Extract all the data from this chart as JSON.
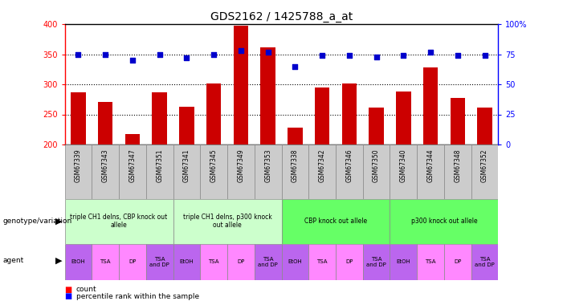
{
  "title": "GDS2162 / 1425788_a_at",
  "samples": [
    "GSM67339",
    "GSM67343",
    "GSM67347",
    "GSM67351",
    "GSM67341",
    "GSM67345",
    "GSM67349",
    "GSM67353",
    "GSM67338",
    "GSM67342",
    "GSM67346",
    "GSM67350",
    "GSM67340",
    "GSM67344",
    "GSM67348",
    "GSM67352"
  ],
  "counts": [
    287,
    271,
    218,
    287,
    263,
    302,
    397,
    361,
    228,
    295,
    302,
    261,
    288,
    328,
    277,
    261
  ],
  "percentiles": [
    75,
    75,
    70,
    75,
    72,
    75,
    78,
    77,
    65,
    74,
    74,
    73,
    74,
    77,
    74,
    74
  ],
  "ylim_left": [
    200,
    400
  ],
  "ylim_right": [
    0,
    100
  ],
  "yticks_left": [
    200,
    250,
    300,
    350,
    400
  ],
  "yticks_right": [
    0,
    25,
    50,
    75,
    100
  ],
  "bar_color": "#cc0000",
  "dot_color": "#0000cc",
  "genotype_groups": [
    {
      "label": "triple CH1 delns, CBP knock out\nallele",
      "start": 0,
      "end": 4,
      "color": "#ccffcc"
    },
    {
      "label": "triple CH1 delns, p300 knock\nout allele",
      "start": 4,
      "end": 8,
      "color": "#ccffcc"
    },
    {
      "label": "CBP knock out allele",
      "start": 8,
      "end": 12,
      "color": "#66ff66"
    },
    {
      "label": "p300 knock out allele",
      "start": 12,
      "end": 16,
      "color": "#66ff66"
    }
  ],
  "agent_color_map": [
    "#bb66ee",
    "#ff88ff",
    "#ff88ff",
    "#bb66ee",
    "#bb66ee",
    "#ff88ff",
    "#ff88ff",
    "#bb66ee",
    "#bb66ee",
    "#ff88ff",
    "#ff88ff",
    "#bb66ee",
    "#bb66ee",
    "#ff88ff",
    "#ff88ff",
    "#bb66ee"
  ],
  "agent_labels": [
    "EtOH",
    "TSA",
    "DP",
    "TSA\nand DP",
    "EtOH",
    "TSA",
    "DP",
    "TSA\nand DP",
    "EtOH",
    "TSA",
    "DP",
    "TSA\nand DP",
    "EtOH",
    "TSA",
    "DP",
    "TSA\nand DP"
  ]
}
